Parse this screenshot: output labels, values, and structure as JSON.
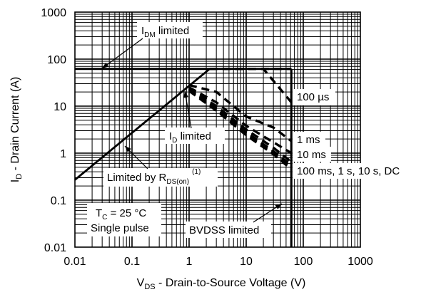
{
  "chart_data": {
    "type": "line",
    "x_scale": "log",
    "y_scale": "log",
    "xlim": [
      0.01,
      1000
    ],
    "ylim": [
      0.01,
      1000
    ],
    "grid": true,
    "x_ticks": [
      "0.01",
      "0.1",
      "1",
      "10",
      "100",
      "1000"
    ],
    "y_ticks": [
      "0.01",
      "0.1",
      "1",
      "10",
      "100",
      "1000"
    ],
    "xlabel": {
      "main": "V",
      "sub": "DS",
      "rest": " - Drain-to-Source Voltage (V)"
    },
    "ylabel": {
      "main": "I",
      "sub": "D",
      "rest": " - Drain Current (A)"
    },
    "series": [
      {
        "name": "R_DS(on) limit",
        "style": "solid",
        "points": [
          [
            0.01,
            0.27
          ],
          [
            2.3,
            62
          ]
        ]
      },
      {
        "name": "I_DM limit",
        "style": "solid",
        "points": [
          [
            0.01,
            62
          ],
          [
            62,
            62
          ]
        ]
      },
      {
        "name": "BVDSS limit",
        "style": "solid",
        "points": [
          [
            62,
            62
          ],
          [
            62,
            0.01
          ]
        ]
      },
      {
        "name": "100 µs",
        "style": "dashed",
        "points": [
          [
            2.3,
            62
          ],
          [
            62,
            62
          ]
        ]
      },
      {
        "name": "100 µs",
        "style": "dashed",
        "points": [
          [
            2.3,
            62
          ],
          [
            20,
            62
          ],
          [
            62,
            12
          ]
        ]
      },
      {
        "name": "1 ms",
        "style": "dashed",
        "points": [
          [
            1,
            28
          ],
          [
            3,
            20
          ],
          [
            10,
            6
          ],
          [
            30,
            3.5
          ],
          [
            62,
            1.8
          ]
        ]
      },
      {
        "name": "10 ms",
        "style": "dashed",
        "points": [
          [
            1,
            25
          ],
          [
            3,
            12
          ],
          [
            10,
            3.8
          ],
          [
            30,
            1.7
          ],
          [
            62,
            1.0
          ]
        ]
      },
      {
        "name": "100 ms",
        "style": "dashed",
        "points": [
          [
            1,
            24
          ],
          [
            3,
            10
          ],
          [
            10,
            3.2
          ],
          [
            30,
            1.3
          ],
          [
            62,
            0.65
          ]
        ]
      },
      {
        "name": "1 s",
        "style": "dashed",
        "points": [
          [
            1,
            23
          ],
          [
            3,
            9
          ],
          [
            10,
            2.8
          ],
          [
            30,
            1.1
          ],
          [
            62,
            0.55
          ]
        ]
      },
      {
        "name": "10 s",
        "style": "dashed",
        "points": [
          [
            1,
            22
          ],
          [
            3,
            8.5
          ],
          [
            10,
            2.6
          ],
          [
            30,
            1.0
          ],
          [
            62,
            0.5
          ]
        ]
      },
      {
        "name": "DC",
        "style": "dashed",
        "points": [
          [
            1,
            21
          ],
          [
            3,
            8
          ],
          [
            10,
            2.4
          ],
          [
            30,
            0.95
          ],
          [
            62,
            0.45
          ]
        ]
      }
    ],
    "annotations": {
      "idm_limited": {
        "main": "I",
        "sub": "DM",
        "rest": " limited"
      },
      "id_limited": {
        "main": "I",
        "sub": "D",
        "rest": " limited"
      },
      "rdson_limited": {
        "main": "Limited by R",
        "sub": "DS(on)",
        "sup": "(1)"
      },
      "conditions_line1": {
        "main": "T",
        "sub": "C",
        "rest": " = 25 °C"
      },
      "conditions_line2": "Single pulse",
      "bvdss_limited": "BVDSS limited",
      "label_100us": "100 µs",
      "label_1ms": "1 ms",
      "label_10ms": "10 ms",
      "label_dc": "100 ms, 1 s, 10 s, DC"
    }
  }
}
